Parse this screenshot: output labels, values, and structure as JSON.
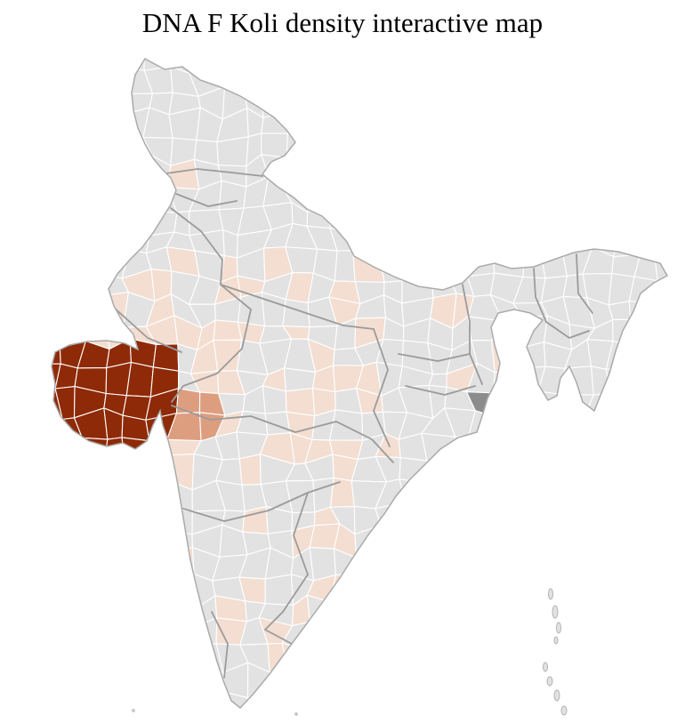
{
  "title": "DNA F Koli density interactive map",
  "map": {
    "type": "choropleth",
    "region": "India",
    "colors": {
      "background": "#ffffff",
      "land": "#e3e2e2",
      "district_border": "#ffffff",
      "state_border": "#9b9b9b",
      "outline": "#aaaaaa",
      "density_high": "#8e2a07",
      "density_medium": "#dd9e80",
      "density_low": "#f3ded1",
      "special_gray": "#8c8c8c",
      "island_stroke": "#b3b3b3",
      "small_island": "#c9c9c9"
    },
    "density_levels": [
      {
        "name": "high",
        "color": "#8e2a07"
      },
      {
        "name": "medium",
        "color": "#dd9e80"
      },
      {
        "name": "low",
        "color": "#f3ded1"
      },
      {
        "name": "none",
        "color": "#e3e2e2"
      }
    ]
  }
}
